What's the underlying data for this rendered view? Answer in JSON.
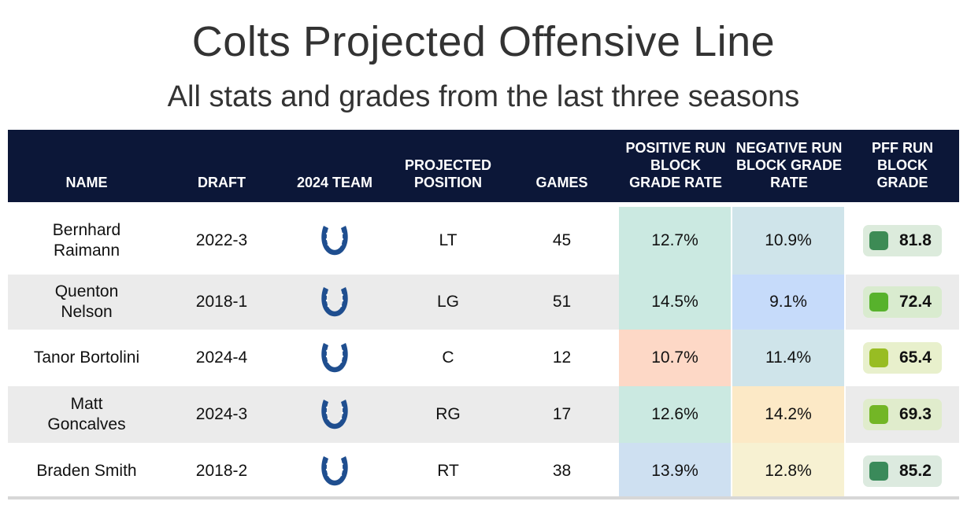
{
  "title": "Colts Projected Offensive Line",
  "subtitle": "All stats and grades from the last three seasons",
  "columns": {
    "name": "NAME",
    "draft": "DRAFT",
    "team": "2024 TEAM",
    "position": "PROJECTED POSITION",
    "games": "GAMES",
    "positive": "POSITIVE RUN BLOCK GRADE RATE",
    "negative": "NEGATIVE RUN BLOCK GRADE RATE",
    "pff": "PFF RUN BLOCK GRADE"
  },
  "colors": {
    "header_bg": "#0c1738",
    "logo": "#1f4e8f",
    "row_alt": "#ebebeb"
  },
  "chart_data": {
    "type": "table",
    "title": "Colts Projected Offensive Line",
    "subtitle": "All stats and grades from the last three seasons",
    "rows": [
      {
        "name": "Bernhard Raimann",
        "draft": "2022-3",
        "team_icon": "colts-horseshoe-icon",
        "position": "LT",
        "games": "45",
        "positive": "12.7%",
        "negative": "10.9%",
        "pff": "81.8",
        "positive_color": "#cbe9e1",
        "negative_color": "#cfe4ea",
        "pff_badge_color": "#dcebdc",
        "pff_swatch_color": "#3d8b55"
      },
      {
        "name": "Quenton Nelson",
        "draft": "2018-1",
        "team_icon": "colts-horseshoe-icon",
        "position": "LG",
        "games": "51",
        "positive": "14.5%",
        "negative": "9.1%",
        "pff": "72.4",
        "positive_color": "#cbe9e1",
        "negative_color": "#c6dbfa",
        "pff_badge_color": "#d9ebcf",
        "pff_swatch_color": "#57b22c"
      },
      {
        "name": "Tanor Bortolini",
        "draft": "2024-4",
        "team_icon": "colts-horseshoe-icon",
        "position": "C",
        "games": "12",
        "positive": "10.7%",
        "negative": "11.4%",
        "pff": "65.4",
        "positive_color": "#fdd8c6",
        "negative_color": "#cfe4ea",
        "pff_badge_color": "#e8f0cc",
        "pff_swatch_color": "#98bd23"
      },
      {
        "name": "Matt Goncalves",
        "draft": "2024-3",
        "team_icon": "colts-horseshoe-icon",
        "position": "RG",
        "games": "17",
        "positive": "12.6%",
        "negative": "14.2%",
        "pff": "69.3",
        "positive_color": "#cbe9e1",
        "negative_color": "#fce9c6",
        "pff_badge_color": "#e0eccc",
        "pff_swatch_color": "#73b626"
      },
      {
        "name": "Braden Smith",
        "draft": "2018-2",
        "team_icon": "colts-horseshoe-icon",
        "position": "RT",
        "games": "38",
        "positive": "13.9%",
        "negative": "12.8%",
        "pff": "85.2",
        "positive_color": "#cee0f1",
        "negative_color": "#f7f1d2",
        "pff_badge_color": "#dceadf",
        "pff_swatch_color": "#3a8a5a"
      }
    ]
  }
}
